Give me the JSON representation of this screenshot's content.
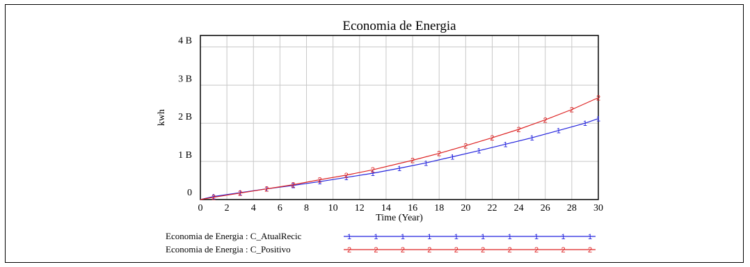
{
  "chart_data": {
    "type": "line",
    "title": "Economia de Energia",
    "xlabel": "Time (Year)",
    "ylabel": "kwh",
    "xlim": [
      0,
      30
    ],
    "ylim": [
      0,
      4
    ],
    "x_ticks": [
      "0",
      "2",
      "4",
      "6",
      "8",
      "10",
      "12",
      "14",
      "16",
      "18",
      "20",
      "22",
      "24",
      "26",
      "28",
      "30"
    ],
    "y_ticks": [
      "0",
      "1 B",
      "2 B",
      "3 B",
      "4 B"
    ],
    "grid": true,
    "legend_position": "bottom-left",
    "series": [
      {
        "name": "Economia de Energia : C_AtualRecic",
        "marker": "1",
        "color": "#2222dd",
        "x": [
          0,
          1,
          3,
          5,
          7,
          9,
          11,
          13,
          15,
          17,
          19,
          21,
          23,
          25,
          27,
          29,
          30
        ],
        "y": [
          0,
          0.08,
          0.18,
          0.28,
          0.37,
          0.47,
          0.58,
          0.69,
          0.82,
          0.96,
          1.12,
          1.28,
          1.45,
          1.62,
          1.81,
          2.0,
          2.12
        ]
      },
      {
        "name": "Economia de Energia : C_Positivo",
        "marker": "2",
        "color": "#dd2222",
        "x": [
          0,
          1,
          3,
          5,
          7,
          9,
          11,
          13,
          16,
          18,
          20,
          22,
          24,
          26,
          28,
          30
        ],
        "y": [
          0,
          0.06,
          0.17,
          0.28,
          0.39,
          0.52,
          0.64,
          0.78,
          1.03,
          1.21,
          1.41,
          1.62,
          1.84,
          2.09,
          2.36,
          2.67
        ]
      }
    ],
    "legend_marker_count": 10
  }
}
